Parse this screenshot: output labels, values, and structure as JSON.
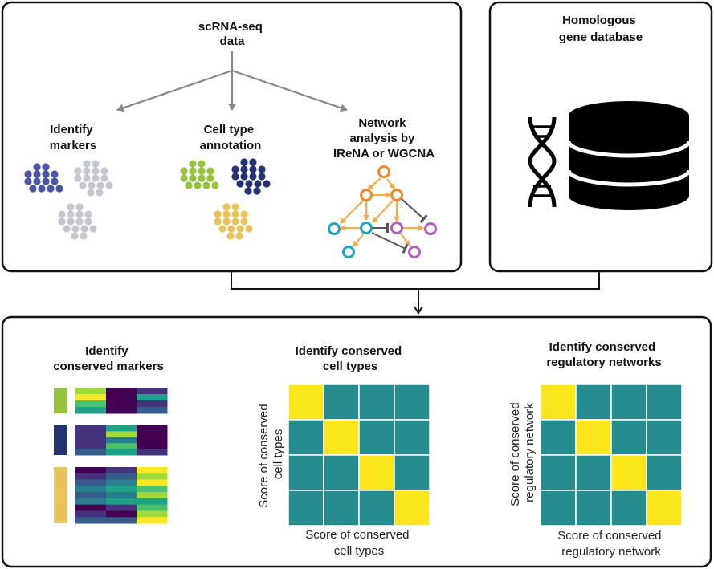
{
  "colors": {
    "grey_dot": "#c4c6d0",
    "navy": "#243273",
    "blue_dot": "#4a55a6",
    "green": "#95c33e",
    "yellow_dot": "#e8c25a",
    "orange": "#f0882c",
    "orange_edge": "#f3ad4c",
    "cyan": "#1ea4c7",
    "magenta": "#b65bc4",
    "teal": "#258b8c",
    "yellow": "#fbe51b",
    "arrow_grey": "#888888"
  },
  "top_left_panel": {
    "source_title": [
      "scRNA-seq",
      "data"
    ],
    "branches": [
      {
        "label": [
          "Identify",
          "markers"
        ]
      },
      {
        "label": [
          "Cell type",
          "annotation"
        ]
      },
      {
        "label": [
          "Network",
          "analysis by",
          "IReNA or WGCNA"
        ]
      }
    ]
  },
  "top_right_panel": {
    "title": [
      "Homologous",
      "gene  database"
    ],
    "icons": [
      "dna-icon",
      "database-icon"
    ]
  },
  "bottom_panel": {
    "markers_section": {
      "title": [
        "Identify",
        "conserved markers"
      ]
    },
    "celltypes_section": {
      "title": [
        "Identify conserved",
        "cell types"
      ],
      "y_axis_label": [
        "Score of conserved",
        "cell types"
      ],
      "x_axis_label": [
        "Score of conserved",
        "cell types"
      ]
    },
    "networks_section": {
      "title": [
        "Identify conserved",
        "regulatory networks"
      ],
      "y_axis_label": [
        "Score of conserved",
        "regulatory network"
      ],
      "x_axis_label": [
        "Score of conserved",
        "regulatory network"
      ]
    }
  }
}
